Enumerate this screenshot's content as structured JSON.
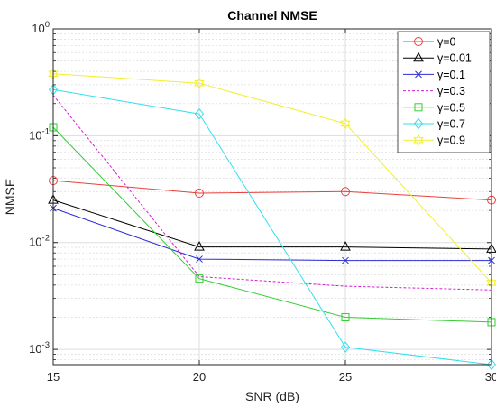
{
  "chart_data": {
    "type": "line",
    "title": "Channel NMSE",
    "xlabel": "SNR (dB)",
    "ylabel": "NMSE",
    "x": [
      15,
      20,
      25,
      30
    ],
    "xlim": [
      15,
      30
    ],
    "xticks": [
      "15",
      "20",
      "25",
      "30"
    ],
    "yscale": "log",
    "ylim": [
      0.00072,
      1
    ],
    "yticks": [
      {
        "value": 0.001,
        "base": "10",
        "exp": "-3"
      },
      {
        "value": 0.01,
        "base": "10",
        "exp": "-2"
      },
      {
        "value": 0.1,
        "base": "10",
        "exp": "-1"
      },
      {
        "value": 1,
        "base": "10",
        "exp": "0"
      }
    ],
    "grid": true,
    "minor_grid": true,
    "legend_position": "top-right",
    "series": [
      {
        "name": "γ=0",
        "color": "#e8413c",
        "marker": "circle",
        "dash": "",
        "values": [
          0.038,
          0.029,
          0.03,
          0.025
        ]
      },
      {
        "name": "γ=0.01",
        "color": "#000000",
        "marker": "triangle",
        "dash": "",
        "values": [
          0.025,
          0.0091,
          0.0091,
          0.0087
        ]
      },
      {
        "name": "γ=0.1",
        "color": "#2b2bd6",
        "marker": "x",
        "dash": "",
        "values": [
          0.021,
          0.007,
          0.0068,
          0.0068
        ]
      },
      {
        "name": "γ=0.3",
        "color": "#d11fd1",
        "marker": "none",
        "dash": "3,2",
        "values": [
          0.24,
          0.0048,
          0.0039,
          0.0036
        ]
      },
      {
        "name": "γ=0.5",
        "color": "#33cc33",
        "marker": "square",
        "dash": "",
        "values": [
          0.12,
          0.0046,
          0.002,
          0.0018
        ]
      },
      {
        "name": "γ=0.7",
        "color": "#33dfee",
        "marker": "diamond",
        "dash": "",
        "values": [
          0.27,
          0.16,
          0.00105,
          0.00072
        ]
      },
      {
        "name": "γ=0.9",
        "color": "#f2ef2c",
        "marker": "hexagram",
        "dash": "",
        "values": [
          0.38,
          0.31,
          0.13,
          0.0042
        ]
      }
    ]
  }
}
